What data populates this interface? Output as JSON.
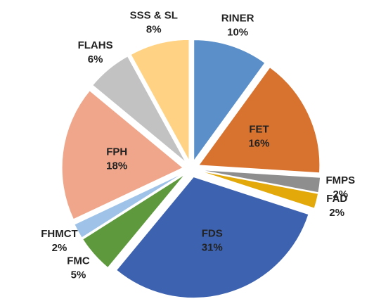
{
  "chart_data": {
    "type": "pie",
    "categories": [
      "RINER",
      "FET",
      "FMPS",
      "FAD",
      "FDS",
      "FMC",
      "FHMCT",
      "FPH",
      "FLAHS",
      "SSS & SL"
    ],
    "values": [
      10,
      16,
      2,
      2,
      31,
      5,
      2,
      18,
      6,
      8
    ],
    "value_labels": [
      "10%",
      "16%",
      "2%",
      "2%",
      "31%",
      "5%",
      "2%",
      "18%",
      "6%",
      "8%"
    ],
    "colors": [
      "#5b8fc9",
      "#d8722f",
      "#8e8e8e",
      "#e3a90a",
      "#3d62b0",
      "#5e9a3d",
      "#9fc3e8",
      "#f0a68a",
      "#c2c2c2",
      "#ffd284"
    ]
  }
}
